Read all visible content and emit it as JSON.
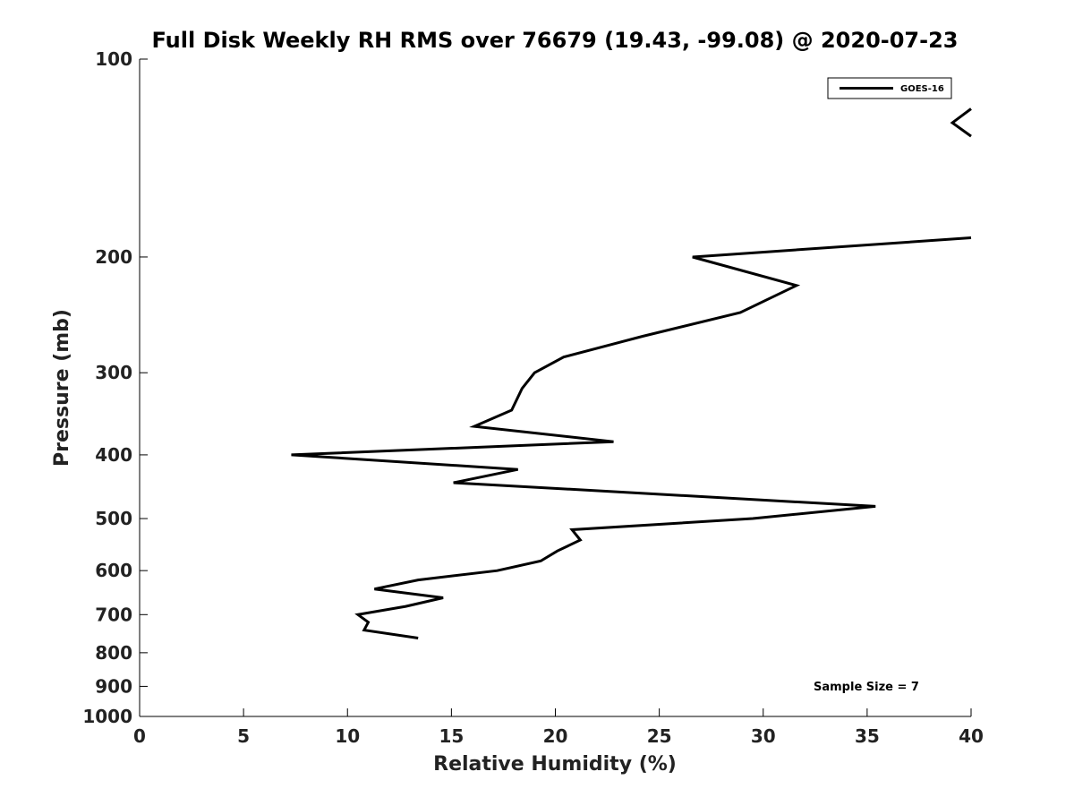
{
  "chart_data": {
    "type": "line",
    "title": "Full Disk Weekly RH RMS over 76679 (19.43, -99.08) @ 2020-07-23",
    "xlabel": "Relative Humidity (%)",
    "ylabel": "Pressure (mb)",
    "xlim": [
      0,
      40
    ],
    "ylim": [
      100,
      1000
    ],
    "yscale": "log",
    "y_inverted": true,
    "x_ticks": [
      "0",
      "5",
      "10",
      "15",
      "20",
      "25",
      "30",
      "35",
      "40"
    ],
    "y_ticks": [
      "100",
      "200",
      "300",
      "400",
      "500",
      "600",
      "700",
      "800",
      "900",
      "1000"
    ],
    "grid": false,
    "legend_position": "top-right",
    "annotation": "Sample Size = 7",
    "series": [
      {
        "name": "GOES-16",
        "color": "#000000",
        "points": [
          [
            40.0,
            119
          ],
          [
            39.1,
            125
          ],
          [
            40.0,
            131
          ],
          [
            40.0,
            187
          ],
          [
            26.6,
            200
          ],
          [
            31.6,
            221
          ],
          [
            28.9,
            243
          ],
          [
            24.2,
            264
          ],
          [
            20.4,
            284
          ],
          [
            19.0,
            300
          ],
          [
            18.4,
            317
          ],
          [
            17.9,
            342
          ],
          [
            16.1,
            362
          ],
          [
            22.8,
            382
          ],
          [
            7.3,
            400
          ],
          [
            18.2,
            421
          ],
          [
            15.1,
            441
          ],
          [
            35.4,
            479
          ],
          [
            29.5,
            500
          ],
          [
            20.8,
            520
          ],
          [
            21.2,
            539
          ],
          [
            20.1,
            560
          ],
          [
            19.3,
            580
          ],
          [
            17.2,
            600
          ],
          [
            13.4,
            620
          ],
          [
            11.3,
            640
          ],
          [
            14.6,
            660
          ],
          [
            12.8,
            680
          ],
          [
            10.5,
            700
          ],
          [
            11.0,
            719
          ],
          [
            10.8,
            739
          ],
          [
            13.4,
            760
          ]
        ]
      }
    ]
  }
}
